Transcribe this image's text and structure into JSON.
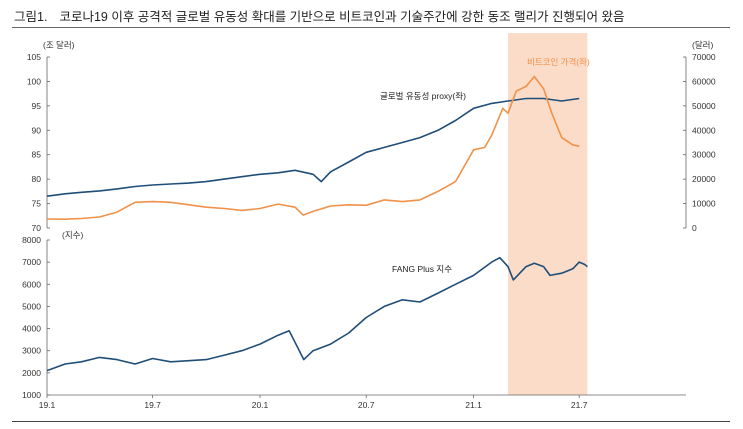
{
  "figure": {
    "number": "그림1.",
    "title": "코로나19 이후 공격적 글로벌 유동성 확대를 기반으로 비트코인과 기술주간에 강한 동조 랠리가 진행되어 왔음"
  },
  "colors": {
    "liquidity": "#1f4e79",
    "bitcoin": "#f0914a",
    "fang": "#1f4e79",
    "highlight": "#fbdcc8"
  },
  "chart_data": [
    {
      "type": "line",
      "title": "",
      "left_axis_unit": "(조 달러)",
      "right_axis_unit": "(달러)",
      "ylim_left": [
        70,
        105
      ],
      "yticks_left": [
        70,
        75,
        80,
        85,
        90,
        95,
        100,
        105
      ],
      "ylim_right": [
        0,
        70000
      ],
      "yticks_right": [
        0,
        10000,
        20000,
        30000,
        40000,
        50000,
        60000,
        70000
      ],
      "x_range": [
        "2019-01-01",
        "2021-12-31"
      ],
      "highlight_period": [
        "2021-03-01",
        "2021-07-15"
      ],
      "series": [
        {
          "name": "글로벌 유동성 proxy(좌)",
          "axis": "left",
          "points": [
            [
              "2019-01-01",
              76.5
            ],
            [
              "2019-02-01",
              77.0
            ],
            [
              "2019-03-01",
              77.3
            ],
            [
              "2019-04-01",
              77.6
            ],
            [
              "2019-05-01",
              78.0
            ],
            [
              "2019-06-01",
              78.5
            ],
            [
              "2019-07-01",
              78.8
            ],
            [
              "2019-08-01",
              79.0
            ],
            [
              "2019-09-01",
              79.2
            ],
            [
              "2019-10-01",
              79.5
            ],
            [
              "2019-11-01",
              80.0
            ],
            [
              "2019-12-01",
              80.5
            ],
            [
              "2020-01-01",
              81.0
            ],
            [
              "2020-02-01",
              81.3
            ],
            [
              "2020-03-01",
              81.8
            ],
            [
              "2020-04-01",
              81.0
            ],
            [
              "2020-04-15",
              79.5
            ],
            [
              "2020-05-01",
              81.5
            ],
            [
              "2020-06-01",
              83.5
            ],
            [
              "2020-07-01",
              85.5
            ],
            [
              "2020-08-01",
              86.5
            ],
            [
              "2020-09-01",
              87.5
            ],
            [
              "2020-10-01",
              88.5
            ],
            [
              "2020-11-01",
              90.0
            ],
            [
              "2020-12-01",
              92.0
            ],
            [
              "2021-01-01",
              94.5
            ],
            [
              "2021-02-01",
              95.5
            ],
            [
              "2021-03-01",
              96.0
            ],
            [
              "2021-04-01",
              96.5
            ],
            [
              "2021-05-01",
              96.5
            ],
            [
              "2021-06-01",
              96.0
            ],
            [
              "2021-07-01",
              96.5
            ]
          ]
        },
        {
          "name": "비트코인 가격(좌)",
          "axis": "right",
          "points": [
            [
              "2019-01-01",
              3700
            ],
            [
              "2019-02-01",
              3600
            ],
            [
              "2019-03-01",
              3900
            ],
            [
              "2019-04-01",
              4500
            ],
            [
              "2019-05-01",
              6500
            ],
            [
              "2019-06-01",
              10500
            ],
            [
              "2019-07-01",
              10800
            ],
            [
              "2019-08-01",
              10500
            ],
            [
              "2019-09-01",
              9500
            ],
            [
              "2019-10-01",
              8500
            ],
            [
              "2019-11-01",
              8000
            ],
            [
              "2019-12-01",
              7200
            ],
            [
              "2020-01-01",
              8000
            ],
            [
              "2020-02-01",
              9800
            ],
            [
              "2020-03-01",
              8500
            ],
            [
              "2020-03-15",
              5300
            ],
            [
              "2020-04-01",
              6800
            ],
            [
              "2020-05-01",
              9000
            ],
            [
              "2020-06-01",
              9500
            ],
            [
              "2020-07-01",
              9300
            ],
            [
              "2020-08-01",
              11500
            ],
            [
              "2020-09-01",
              10800
            ],
            [
              "2020-10-01",
              11500
            ],
            [
              "2020-11-01",
              15000
            ],
            [
              "2020-12-01",
              19000
            ],
            [
              "2021-01-01",
              32000
            ],
            [
              "2021-01-20",
              33000
            ],
            [
              "2021-02-01",
              38000
            ],
            [
              "2021-02-20",
              49000
            ],
            [
              "2021-03-01",
              47000
            ],
            [
              "2021-03-15",
              56000
            ],
            [
              "2021-04-01",
              58000
            ],
            [
              "2021-04-15",
              62000
            ],
            [
              "2021-05-01",
              57000
            ],
            [
              "2021-05-15",
              47000
            ],
            [
              "2021-06-01",
              37000
            ],
            [
              "2021-06-20",
              34000
            ],
            [
              "2021-07-01",
              33500
            ]
          ]
        }
      ],
      "annotations": [
        {
          "series": "글로벌 유동성 proxy(좌)",
          "text": "글로벌 유동성 proxy(좌)"
        },
        {
          "series": "비트코인 가격(좌)",
          "text": "비트코인 가격(좌)"
        }
      ]
    },
    {
      "type": "line",
      "title": "",
      "left_axis_unit": "(지수)",
      "ylim": [
        1000,
        8000
      ],
      "yticks": [
        1000,
        2000,
        3000,
        4000,
        5000,
        6000,
        7000,
        8000
      ],
      "x_range": [
        "2019-01-01",
        "2021-12-31"
      ],
      "xticks": [
        {
          "date": "2019-01-01",
          "label": "19.1"
        },
        {
          "date": "2019-07-01",
          "label": "19.7"
        },
        {
          "date": "2020-01-01",
          "label": "20.1"
        },
        {
          "date": "2020-07-01",
          "label": "20.7"
        },
        {
          "date": "2021-01-01",
          "label": "21.1"
        },
        {
          "date": "2021-07-01",
          "label": "21.7"
        }
      ],
      "highlight_period": [
        "2021-03-01",
        "2021-07-15"
      ],
      "series": [
        {
          "name": "FANG Plus 지수",
          "points": [
            [
              "2019-01-01",
              2100
            ],
            [
              "2019-02-01",
              2400
            ],
            [
              "2019-03-01",
              2500
            ],
            [
              "2019-04-01",
              2700
            ],
            [
              "2019-05-01",
              2600
            ],
            [
              "2019-06-01",
              2400
            ],
            [
              "2019-07-01",
              2650
            ],
            [
              "2019-08-01",
              2500
            ],
            [
              "2019-09-01",
              2550
            ],
            [
              "2019-10-01",
              2600
            ],
            [
              "2019-11-01",
              2800
            ],
            [
              "2019-12-01",
              3000
            ],
            [
              "2020-01-01",
              3300
            ],
            [
              "2020-02-01",
              3700
            ],
            [
              "2020-02-20",
              3900
            ],
            [
              "2020-03-16",
              2600
            ],
            [
              "2020-04-01",
              3000
            ],
            [
              "2020-05-01",
              3300
            ],
            [
              "2020-06-01",
              3800
            ],
            [
              "2020-07-01",
              4500
            ],
            [
              "2020-08-01",
              5000
            ],
            [
              "2020-09-01",
              5300
            ],
            [
              "2020-10-01",
              5200
            ],
            [
              "2020-11-01",
              5600
            ],
            [
              "2020-12-01",
              6000
            ],
            [
              "2021-01-01",
              6400
            ],
            [
              "2021-02-01",
              7000
            ],
            [
              "2021-02-15",
              7200
            ],
            [
              "2021-03-01",
              6800
            ],
            [
              "2021-03-10",
              6200
            ],
            [
              "2021-04-01",
              6800
            ],
            [
              "2021-04-15",
              6950
            ],
            [
              "2021-05-01",
              6800
            ],
            [
              "2021-05-12",
              6400
            ],
            [
              "2021-06-01",
              6500
            ],
            [
              "2021-06-20",
              6700
            ],
            [
              "2021-07-01",
              7000
            ],
            [
              "2021-07-10",
              6900
            ],
            [
              "2021-07-15",
              6800
            ]
          ]
        }
      ],
      "annotations": [
        {
          "series": "FANG Plus 지수",
          "text": "FANG Plus 지수"
        }
      ]
    }
  ]
}
